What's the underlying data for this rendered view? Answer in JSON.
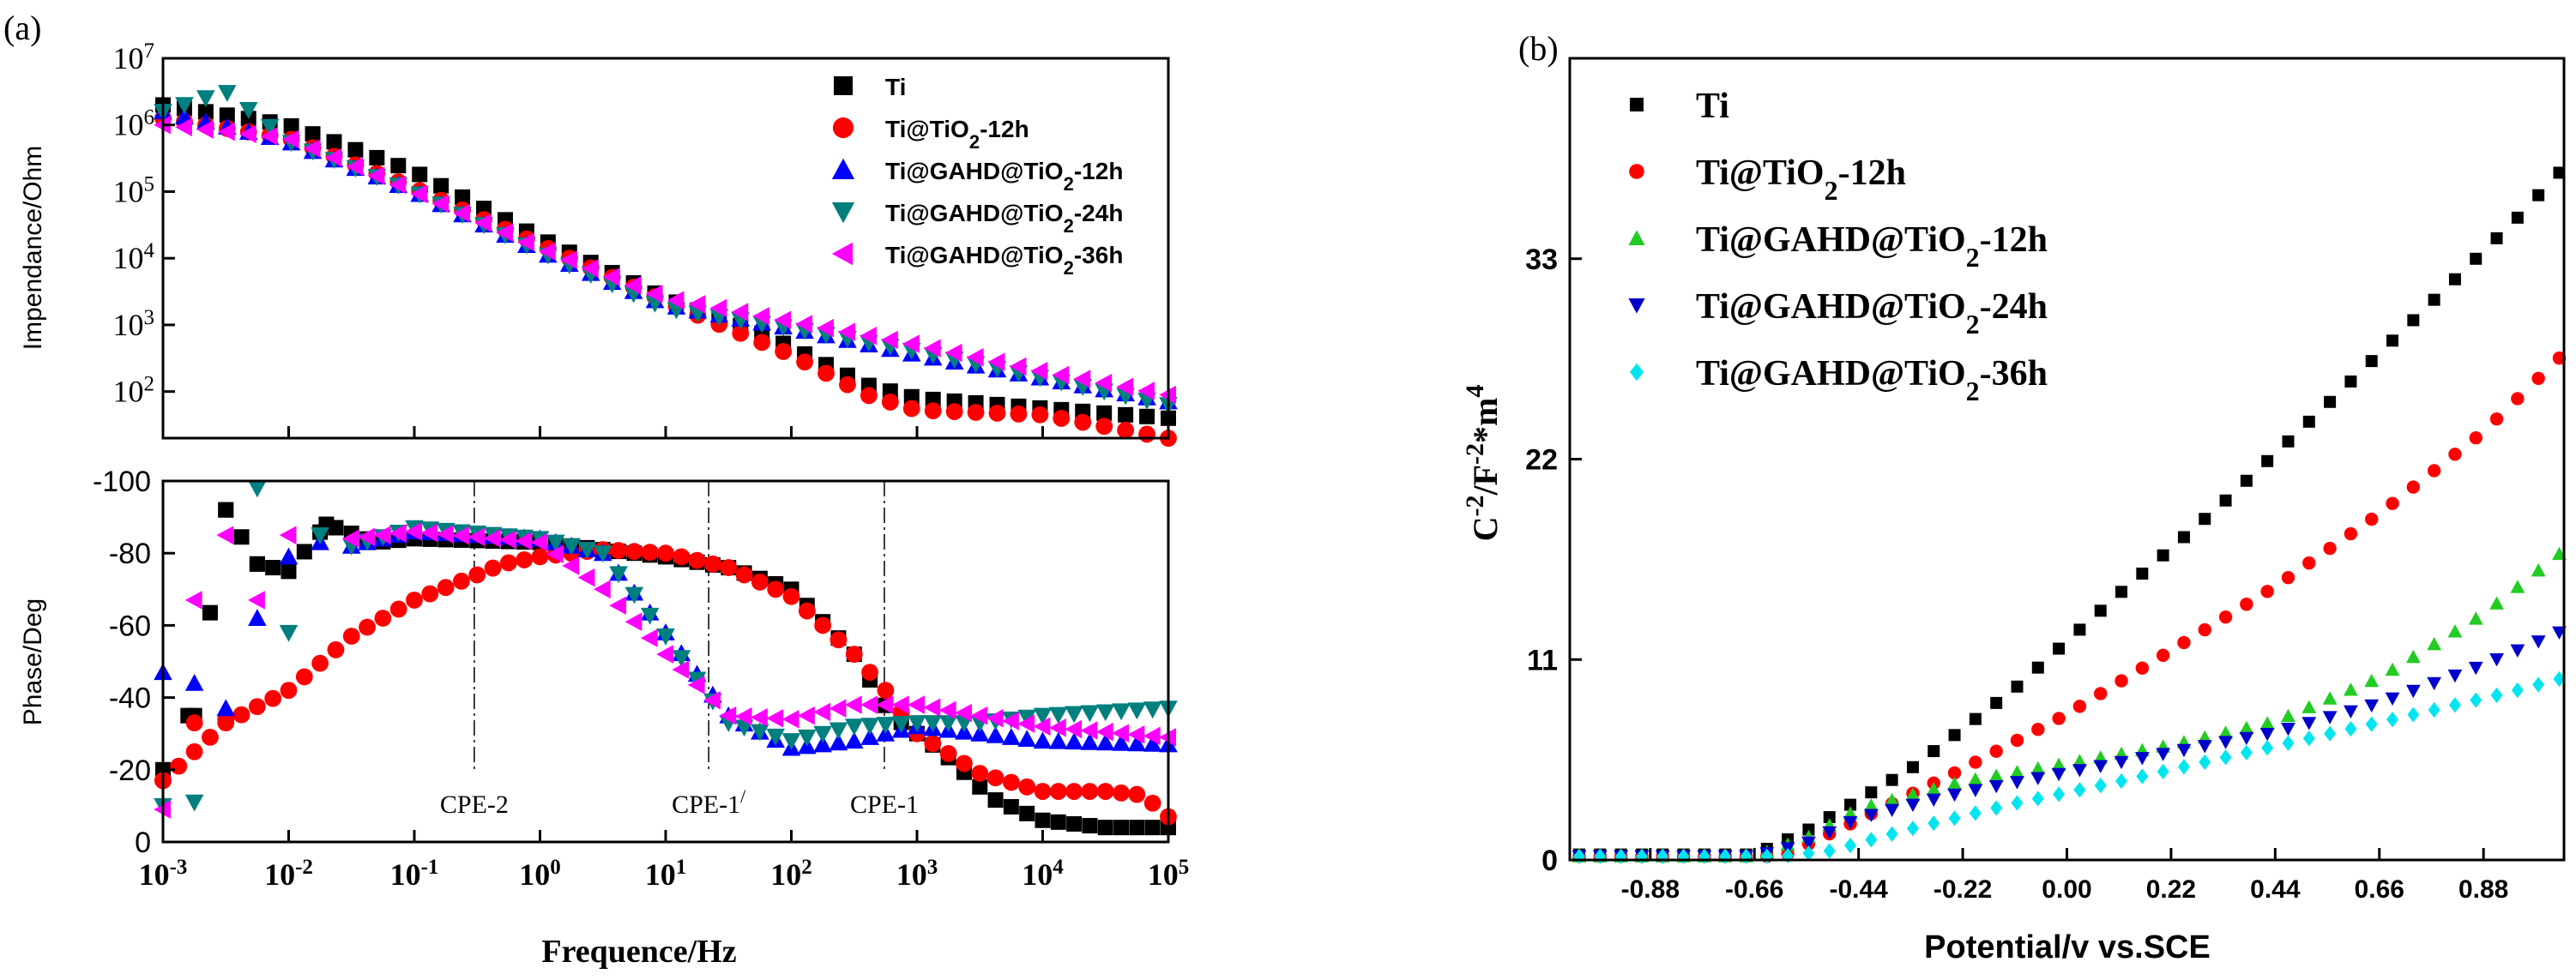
{
  "chart_data": [
    {
      "panel": "(a)",
      "type": "scatter",
      "subplot": "top",
      "title": "",
      "xlabel": "Frequence/Hz",
      "ylabel": "Impendance/Ohm",
      "xscale": "log",
      "yscale": "log",
      "xlim": [
        0.001,
        100000
      ],
      "ylim": [
        20,
        10000000
      ],
      "xticks": [
        {
          "v": 0.001,
          "b": "10",
          "e": "-3"
        },
        {
          "v": 0.01,
          "b": "10",
          "e": "-2"
        },
        {
          "v": 0.1,
          "b": "10",
          "e": "-1"
        },
        {
          "v": 1,
          "b": "10",
          "e": "0"
        },
        {
          "v": 10,
          "b": "10",
          "e": "1"
        },
        {
          "v": 100,
          "b": "10",
          "e": "2"
        },
        {
          "v": 1000,
          "b": "10",
          "e": "3"
        },
        {
          "v": 10000,
          "b": "10",
          "e": "4"
        },
        {
          "v": 100000,
          "b": "10",
          "e": "5"
        }
      ],
      "yticks": [
        {
          "v": 100,
          "b": "10",
          "e": "2"
        },
        {
          "v": 1000,
          "b": "10",
          "e": "3"
        },
        {
          "v": 10000,
          "b": "10",
          "e": "4"
        },
        {
          "v": 100000,
          "b": "10",
          "e": "5"
        },
        {
          "v": 1000000,
          "b": "10",
          "e": "6"
        },
        {
          "v": 10000000,
          "b": "10",
          "e": "7"
        }
      ],
      "legend_position": "top-right",
      "series": [
        {
          "name": "Ti",
          "label": "Ti",
          "sub": "",
          "tail": "",
          "color": "#000000",
          "marker": "square",
          "anchors": [
            [
              -3,
              6.3
            ],
            [
              -2,
              6.0
            ],
            [
              -1,
              5.3
            ],
            [
              0,
              4.3
            ],
            [
              1,
              3.4
            ],
            [
              1.8,
              2.85
            ],
            [
              2.6,
              2.1
            ],
            [
              3,
              1.9
            ],
            [
              4,
              1.75
            ],
            [
              5,
              1.6
            ]
          ]
        },
        {
          "name": "Ti@TiO2-12h",
          "label": "Ti@TiO",
          "sub": "2",
          "tail": "-12h",
          "color": "#ff0000",
          "marker": "circle",
          "anchors": [
            [
              -3,
              6.1
            ],
            [
              -2,
              5.8
            ],
            [
              -1,
              5.05
            ],
            [
              0,
              4.2
            ],
            [
              1,
              3.35
            ],
            [
              2,
              2.55
            ],
            [
              2.6,
              1.95
            ],
            [
              3,
              1.72
            ],
            [
              4,
              1.65
            ],
            [
              5,
              1.3
            ]
          ]
        },
        {
          "name": "Ti@GAHD@TiO2-12h",
          "label": "Ti@GAHD@TiO",
          "sub": "2",
          "tail": "-12h",
          "color": "#0000ff",
          "marker": "triangle-up",
          "anchors": [
            [
              -3,
              6.2
            ],
            [
              -2,
              5.75
            ],
            [
              -1,
              5.0
            ],
            [
              0,
              4.1
            ],
            [
              1,
              3.3
            ],
            [
              2,
              2.95
            ],
            [
              3,
              2.55
            ],
            [
              4,
              2.2
            ],
            [
              5,
              1.85
            ]
          ]
        },
        {
          "name": "Ti@GAHD@TiO2-24h",
          "label": "Ti@GAHD@TiO",
          "sub": "2",
          "tail": "-24h",
          "color": "#007f7f",
          "marker": "triangle-down",
          "anchors": [
            [
              -3,
              6.2
            ],
            [
              -2.5,
              6.5
            ],
            [
              -2,
              5.75
            ],
            [
              -1,
              5.0
            ],
            [
              0,
              4.1
            ],
            [
              1,
              3.25
            ],
            [
              2,
              2.95
            ],
            [
              3,
              2.6
            ],
            [
              4,
              2.2
            ],
            [
              5,
              1.8
            ]
          ]
        },
        {
          "name": "Ti@GAHD@TiO2-36h",
          "label": "Ti@GAHD@TiO",
          "sub": "2",
          "tail": "-36h",
          "color": "#ff00ff",
          "marker": "triangle-left",
          "anchors": [
            [
              -3,
              6.0
            ],
            [
              -2,
              5.8
            ],
            [
              -1,
              5.0
            ],
            [
              0,
              4.15
            ],
            [
              1,
              3.4
            ],
            [
              2,
              3.05
            ],
            [
              3,
              2.7
            ],
            [
              4,
              2.3
            ],
            [
              5,
              1.95
            ]
          ]
        }
      ]
    },
    {
      "panel": "(a)",
      "type": "scatter",
      "subplot": "bottom",
      "title": "",
      "xlabel": "Frequence/Hz",
      "ylabel": "Phase/Deg",
      "xscale": "log",
      "yscale": "linear",
      "xlim": [
        0.001,
        100000
      ],
      "ylim": [
        0,
        -100
      ],
      "yticks": [
        0,
        -20,
        -40,
        -60,
        -80,
        -100
      ],
      "yticklabels": [
        "0",
        "-20",
        "-40",
        "-60",
        "-80",
        "-100"
      ],
      "annotations": [
        {
          "text": "CPE-2",
          "sup": "",
          "x": 0.3
        },
        {
          "text": "CPE-1",
          "sup": "/",
          "x": 22
        },
        {
          "text": "CPE-1",
          "sup": "",
          "x": 550
        }
      ],
      "series": [
        {
          "name": "Ti",
          "color": "#000000",
          "marker": "square",
          "anchors": [
            [
              -2.75,
              -35
            ],
            [
              -2.5,
              -92
            ],
            [
              -2.25,
              -77
            ],
            [
              -2,
              -75
            ],
            [
              -1.7,
              -88
            ],
            [
              -1.3,
              -83
            ],
            [
              -1,
              -84
            ],
            [
              0,
              -83
            ],
            [
              1,
              -79
            ],
            [
              1.5,
              -76
            ],
            [
              2,
              -70
            ],
            [
              2.5,
              -52
            ],
            [
              2.8,
              -35
            ],
            [
              3.2,
              -25
            ],
            [
              3.6,
              -12
            ],
            [
              4,
              -6
            ],
            [
              4.5,
              -4
            ],
            [
              5,
              -4
            ]
          ],
          "scatter_pts": [
            [
              -3,
              -20
            ],
            [
              -2.8,
              -35
            ],
            [
              -2.5,
              -92
            ],
            [
              -2.25,
              -77
            ],
            [
              -2,
              -75
            ],
            [
              -1.7,
              -88
            ]
          ]
        },
        {
          "name": "Ti@TiO2-12h",
          "color": "#ff0000",
          "marker": "circle",
          "anchors": [
            [
              -3,
              -17
            ],
            [
              -2.5,
              -33
            ],
            [
              -2,
              -42
            ],
            [
              -1.5,
              -57
            ],
            [
              -1,
              -67
            ],
            [
              -0.5,
              -74
            ],
            [
              -0.3,
              -77
            ],
            [
              0,
              -79
            ],
            [
              0.5,
              -81
            ],
            [
              1,
              -80
            ],
            [
              1.5,
              -76
            ],
            [
              2,
              -68
            ],
            [
              2.5,
              -52
            ],
            [
              2.75,
              -42
            ],
            [
              3,
              -30
            ],
            [
              3.5,
              -19
            ],
            [
              4,
              -14
            ],
            [
              4.5,
              -14
            ],
            [
              4.8,
              -13
            ],
            [
              5,
              -7
            ]
          ],
          "scatter_pts": [
            [
              -3,
              -17
            ],
            [
              -2.75,
              -33
            ],
            [
              -2.5,
              -34
            ]
          ]
        },
        {
          "name": "Ti@GAHD@TiO2-12h",
          "color": "#0000ff",
          "marker": "triangle-up",
          "anchors": [
            [
              -1.5,
              -82
            ],
            [
              -1,
              -86
            ],
            [
              0,
              -84
            ],
            [
              0.5,
              -80
            ],
            [
              1,
              -58
            ],
            [
              1.5,
              -35
            ],
            [
              2,
              -26
            ],
            [
              2.5,
              -28
            ],
            [
              3,
              -32
            ],
            [
              3.5,
              -30
            ],
            [
              4,
              -28
            ],
            [
              5,
              -27
            ]
          ],
          "scatter_pts": [
            [
              -3,
              -47
            ],
            [
              -2.75,
              -44
            ],
            [
              -2.5,
              -37
            ],
            [
              -2.25,
              -62
            ],
            [
              -2,
              -79
            ],
            [
              -1.75,
              -83
            ]
          ]
        },
        {
          "name": "Ti@GAHD@TiO2-24h",
          "color": "#007f7f",
          "marker": "triangle-down",
          "anchors": [
            [
              -1.5,
              -82
            ],
            [
              -1,
              -87
            ],
            [
              0,
              -84
            ],
            [
              0.5,
              -80
            ],
            [
              1,
              -57
            ],
            [
              1.5,
              -33
            ],
            [
              2,
              -28
            ],
            [
              2.5,
              -32
            ],
            [
              3,
              -33
            ],
            [
              3.5,
              -33
            ],
            [
              4,
              -35
            ],
            [
              5,
              -37
            ]
          ],
          "scatter_pts": [
            [
              -3,
              -10
            ],
            [
              -2.75,
              -11
            ],
            [
              -2.25,
              -98
            ],
            [
              -2,
              -58
            ],
            [
              -1.75,
              -85
            ]
          ]
        },
        {
          "name": "Ti@GAHD@TiO2-36h",
          "color": "#ff00ff",
          "marker": "triangle-left",
          "anchors": [
            [
              -1.5,
              -84
            ],
            [
              -1,
              -86
            ],
            [
              0,
              -83
            ],
            [
              0.5,
              -70
            ],
            [
              1,
              -52
            ],
            [
              1.5,
              -35
            ],
            [
              2,
              -34
            ],
            [
              2.5,
              -38
            ],
            [
              3,
              -38
            ],
            [
              3.5,
              -35
            ],
            [
              4,
              -32
            ],
            [
              5,
              -29
            ]
          ],
          "scatter_pts": [
            [
              -3,
              -9
            ],
            [
              -2.75,
              -67
            ],
            [
              -2.5,
              -85
            ],
            [
              -2.25,
              -67
            ],
            [
              -2,
              -85
            ]
          ]
        }
      ]
    },
    {
      "panel": "(b)",
      "type": "scatter",
      "title": "",
      "xlabel": "Potential/v vs.SCE",
      "ylabel": "C-2/F-2*m4",
      "xlim": [
        -1.05,
        1.05
      ],
      "ylim": [
        0,
        44
      ],
      "xticks": [
        -0.88,
        -0.66,
        -0.44,
        -0.22,
        0.0,
        0.22,
        0.44,
        0.66,
        0.88
      ],
      "xticklabels": [
        "-0.88",
        "-0.66",
        "-0.44",
        "-0.22",
        "0.00",
        "0.22",
        "0.44",
        "0.66",
        "0.88"
      ],
      "yticks": [
        0,
        11,
        22,
        33
      ],
      "yticklabels": [
        "0",
        "11",
        "22",
        "33"
      ],
      "legend_position": "top-left",
      "series": [
        {
          "name": "Ti",
          "label": "Ti",
          "sub": "",
          "tail": "",
          "color": "#000000",
          "marker": "square",
          "anchors": [
            [
              -1.05,
              0.3
            ],
            [
              -0.66,
              0.3
            ],
            [
              -0.55,
              1.6
            ],
            [
              -0.33,
              5.0
            ],
            [
              -0.11,
              9.4
            ],
            [
              0.11,
              14.6
            ],
            [
              0.33,
              19.6
            ],
            [
              0.55,
              25.0
            ],
            [
              0.77,
              30.6
            ],
            [
              0.95,
              35.2
            ],
            [
              1.05,
              38.0
            ]
          ]
        },
        {
          "name": "Ti@TiO2-12h",
          "label": "Ti@TiO",
          "sub": "2",
          "tail": "-12h",
          "color": "#ff0000",
          "marker": "circle",
          "anchors": [
            [
              -1.05,
              0.2
            ],
            [
              -0.6,
              0.2
            ],
            [
              -0.44,
              2.2
            ],
            [
              -0.22,
              5.0
            ],
            [
              0.0,
              8.0
            ],
            [
              0.22,
              11.5
            ],
            [
              0.44,
              15.0
            ],
            [
              0.66,
              19.0
            ],
            [
              0.88,
              23.5
            ],
            [
              1.05,
              27.8
            ]
          ]
        },
        {
          "name": "Ti@GAHD@TiO2-12h",
          "label": "Ti@GAHD@TiO",
          "sub": "2",
          "tail": "-12h",
          "color": "#22cc22",
          "marker": "triangle-up",
          "anchors": [
            [
              -1.05,
              0.2
            ],
            [
              -0.66,
              0.2
            ],
            [
              -0.55,
              1.2
            ],
            [
              -0.44,
              2.8
            ],
            [
              -0.22,
              4.3
            ],
            [
              0.0,
              5.3
            ],
            [
              0.22,
              6.3
            ],
            [
              0.44,
              7.6
            ],
            [
              0.66,
              10.0
            ],
            [
              0.88,
              13.5
            ],
            [
              1.05,
              17.0
            ]
          ]
        },
        {
          "name": "Ti@GAHD@TiO2-24h",
          "label": "Ti@GAHD@TiO",
          "sub": "2",
          "tail": "-24h",
          "color": "#0000cc",
          "marker": "triangle-down",
          "anchors": [
            [
              -1.05,
              0.2
            ],
            [
              -0.66,
              0.2
            ],
            [
              -0.55,
              0.9
            ],
            [
              -0.44,
              2.3
            ],
            [
              -0.22,
              3.7
            ],
            [
              0.0,
              4.8
            ],
            [
              0.22,
              5.9
            ],
            [
              0.44,
              7.0
            ],
            [
              0.66,
              8.6
            ],
            [
              0.88,
              10.7
            ],
            [
              1.05,
              12.6
            ]
          ]
        },
        {
          "name": "Ti@GAHD@TiO2-36h",
          "label": "Ti@GAHD@TiO",
          "sub": "2",
          "tail": "-36h",
          "color": "#00e5ee",
          "marker": "diamond",
          "anchors": [
            [
              -1.05,
              0.2
            ],
            [
              -0.6,
              0.2
            ],
            [
              -0.5,
              0.5
            ],
            [
              -0.33,
              1.7
            ],
            [
              -0.11,
              3.1
            ],
            [
              0.11,
              4.3
            ],
            [
              0.33,
              5.6
            ],
            [
              0.55,
              6.9
            ],
            [
              0.77,
              8.2
            ],
            [
              0.95,
              9.3
            ],
            [
              1.05,
              10.0
            ]
          ]
        }
      ]
    }
  ]
}
